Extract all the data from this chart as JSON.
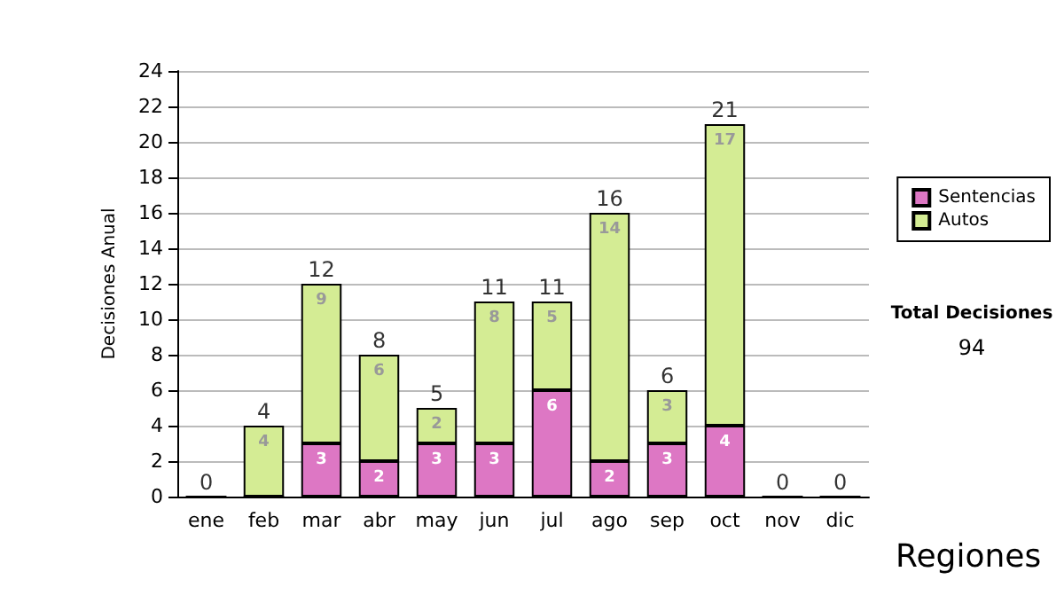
{
  "chart_data": {
    "type": "bar",
    "ylabel": "Decisiones Anual",
    "categories": [
      "ene",
      "feb",
      "mar",
      "abr",
      "may",
      "jun",
      "jul",
      "ago",
      "sep",
      "oct",
      "nov",
      "dic"
    ],
    "stacked": true,
    "series": [
      {
        "name": "Sentencias",
        "color": "#dd77c4",
        "values": [
          0,
          0,
          3,
          2,
          3,
          3,
          6,
          2,
          3,
          4,
          0,
          0
        ],
        "value_labels": [
          null,
          null,
          "3",
          "2",
          "3",
          "3",
          "6",
          "2",
          "3",
          "4",
          null,
          null
        ]
      },
      {
        "name": "Autos",
        "color": "#d4ec94",
        "values": [
          0,
          4,
          9,
          6,
          2,
          8,
          5,
          14,
          3,
          17,
          0,
          0
        ],
        "value_labels": [
          null,
          "4",
          "9",
          "6",
          "2",
          "8",
          "5",
          "14",
          "3",
          "17",
          null,
          null
        ]
      }
    ],
    "totals": [
      "0",
      "4",
      "12",
      "8",
      "5",
      "11",
      "11",
      "16",
      "6",
      "21",
      "0",
      "0"
    ],
    "ylim": [
      0,
      24
    ],
    "yticks": [
      0,
      2,
      4,
      6,
      8,
      10,
      12,
      14,
      16,
      18,
      20,
      22,
      24
    ],
    "grid": "y",
    "legend": "right",
    "annotations": [
      "Total Decisiones",
      "94",
      "Regiones"
    ]
  }
}
